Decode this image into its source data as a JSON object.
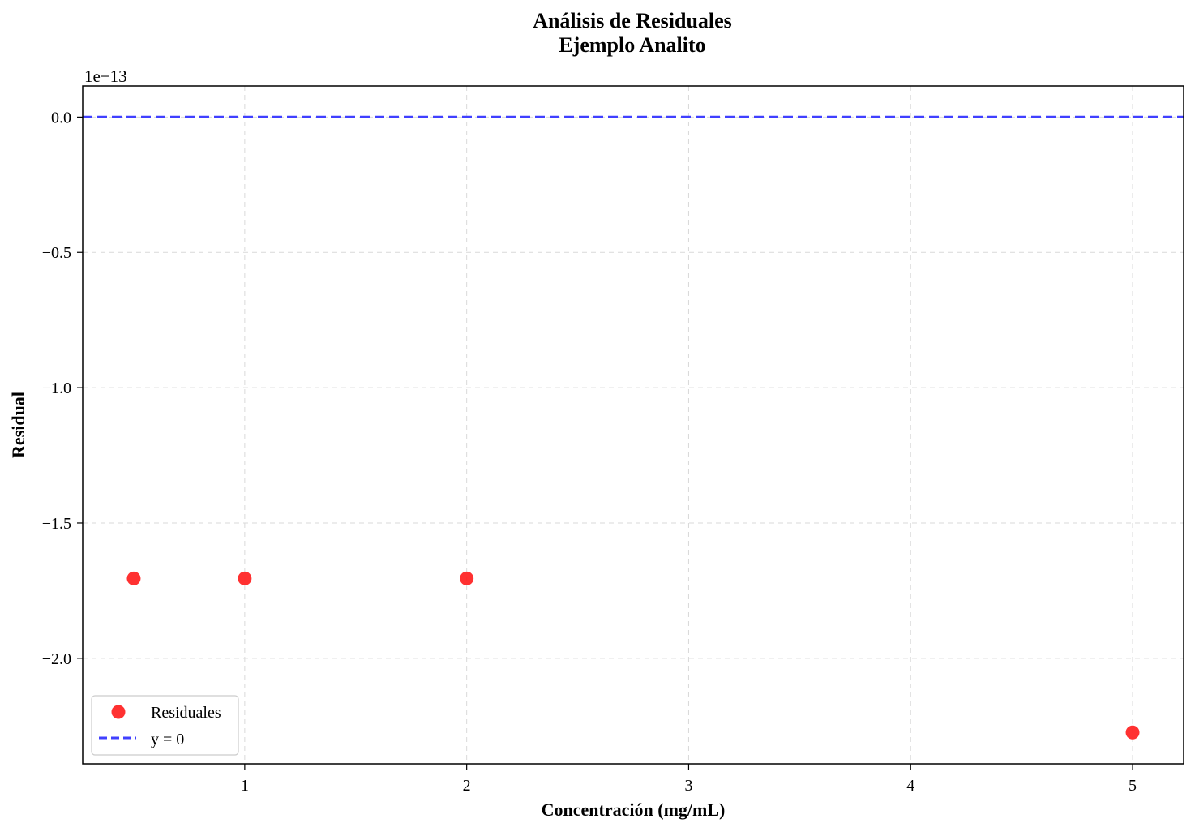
{
  "chart_data": {
    "type": "scatter",
    "title_line1": "Análisis de Residuales",
    "title_line2": "Ejemplo Analito",
    "xlabel": "Concentración (mg/mL)",
    "ylabel": "Residual",
    "y_offset_label": "1e−13",
    "xlim": [
      0.27,
      5.23
    ],
    "ylim": [
      -2.39,
      0.115
    ],
    "x_ticks": [
      1,
      2,
      3,
      4,
      5
    ],
    "x_tick_labels": [
      "1",
      "2",
      "3",
      "4",
      "5"
    ],
    "y_ticks": [
      0.0,
      -0.5,
      -1.0,
      -1.5,
      -2.0
    ],
    "y_tick_labels": [
      "0.0",
      "−0.5",
      "−1.0",
      "−1.5",
      "−2.0"
    ],
    "grid": true,
    "legend_position": "lower-left",
    "series": [
      {
        "name": "Residuales",
        "kind": "scatter",
        "color": "#ff2020",
        "x": [
          0.5,
          1.0,
          2.0,
          5.0
        ],
        "y": [
          -1.705,
          -1.705,
          -1.705,
          -2.274
        ]
      }
    ],
    "reference_line": {
      "name": "y = 0",
      "y": 0,
      "color": "#4040ff",
      "style": "dashed"
    }
  }
}
